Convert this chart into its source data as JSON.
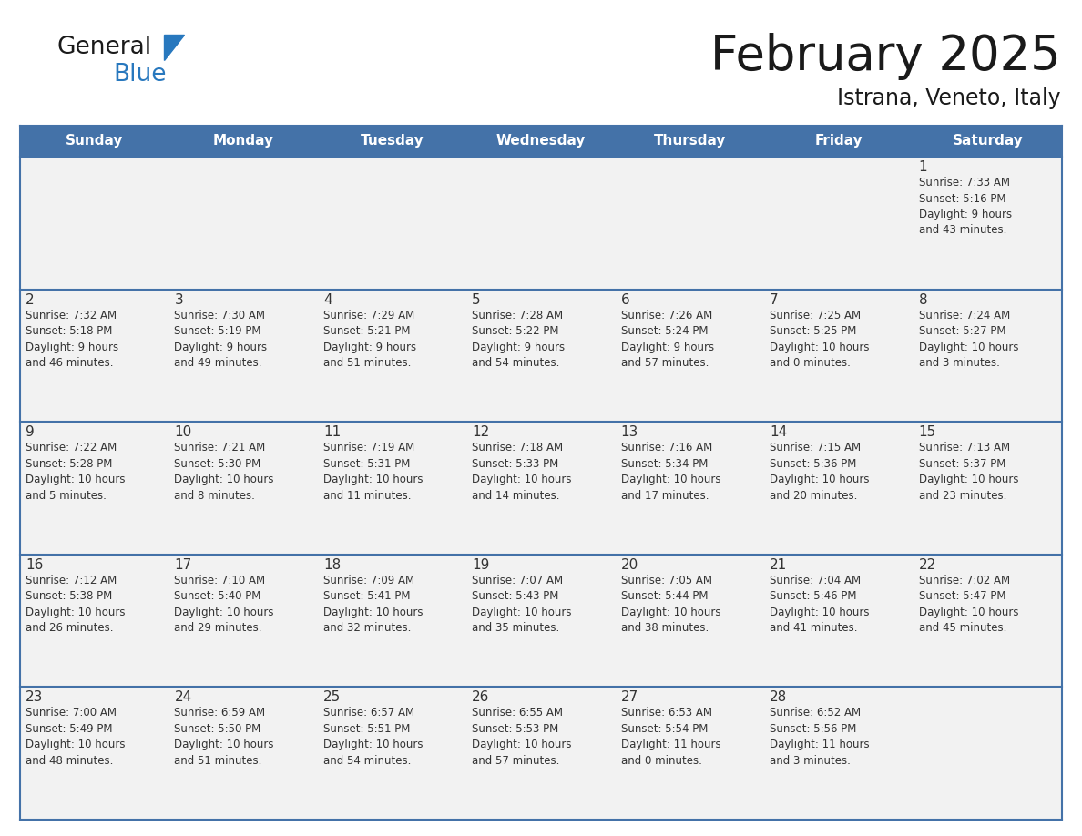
{
  "title": "February 2025",
  "subtitle": "Istrana, Veneto, Italy",
  "days_of_week": [
    "Sunday",
    "Monday",
    "Tuesday",
    "Wednesday",
    "Thursday",
    "Friday",
    "Saturday"
  ],
  "header_bg": "#4472A8",
  "header_text": "#FFFFFF",
  "cell_bg": "#F2F2F2",
  "border_color": "#4472A8",
  "separator_color": "#4472A8",
  "text_color": "#333333",
  "calendar_data": [
    [
      null,
      null,
      null,
      null,
      null,
      null,
      {
        "day": "1",
        "sunrise": "Sunrise: 7:33 AM",
        "sunset": "Sunset: 5:16 PM",
        "daylight": "Daylight: 9 hours\nand 43 minutes."
      }
    ],
    [
      {
        "day": "2",
        "sunrise": "Sunrise: 7:32 AM",
        "sunset": "Sunset: 5:18 PM",
        "daylight": "Daylight: 9 hours\nand 46 minutes."
      },
      {
        "day": "3",
        "sunrise": "Sunrise: 7:30 AM",
        "sunset": "Sunset: 5:19 PM",
        "daylight": "Daylight: 9 hours\nand 49 minutes."
      },
      {
        "day": "4",
        "sunrise": "Sunrise: 7:29 AM",
        "sunset": "Sunset: 5:21 PM",
        "daylight": "Daylight: 9 hours\nand 51 minutes."
      },
      {
        "day": "5",
        "sunrise": "Sunrise: 7:28 AM",
        "sunset": "Sunset: 5:22 PM",
        "daylight": "Daylight: 9 hours\nand 54 minutes."
      },
      {
        "day": "6",
        "sunrise": "Sunrise: 7:26 AM",
        "sunset": "Sunset: 5:24 PM",
        "daylight": "Daylight: 9 hours\nand 57 minutes."
      },
      {
        "day": "7",
        "sunrise": "Sunrise: 7:25 AM",
        "sunset": "Sunset: 5:25 PM",
        "daylight": "Daylight: 10 hours\nand 0 minutes."
      },
      {
        "day": "8",
        "sunrise": "Sunrise: 7:24 AM",
        "sunset": "Sunset: 5:27 PM",
        "daylight": "Daylight: 10 hours\nand 3 minutes."
      }
    ],
    [
      {
        "day": "9",
        "sunrise": "Sunrise: 7:22 AM",
        "sunset": "Sunset: 5:28 PM",
        "daylight": "Daylight: 10 hours\nand 5 minutes."
      },
      {
        "day": "10",
        "sunrise": "Sunrise: 7:21 AM",
        "sunset": "Sunset: 5:30 PM",
        "daylight": "Daylight: 10 hours\nand 8 minutes."
      },
      {
        "day": "11",
        "sunrise": "Sunrise: 7:19 AM",
        "sunset": "Sunset: 5:31 PM",
        "daylight": "Daylight: 10 hours\nand 11 minutes."
      },
      {
        "day": "12",
        "sunrise": "Sunrise: 7:18 AM",
        "sunset": "Sunset: 5:33 PM",
        "daylight": "Daylight: 10 hours\nand 14 minutes."
      },
      {
        "day": "13",
        "sunrise": "Sunrise: 7:16 AM",
        "sunset": "Sunset: 5:34 PM",
        "daylight": "Daylight: 10 hours\nand 17 minutes."
      },
      {
        "day": "14",
        "sunrise": "Sunrise: 7:15 AM",
        "sunset": "Sunset: 5:36 PM",
        "daylight": "Daylight: 10 hours\nand 20 minutes."
      },
      {
        "day": "15",
        "sunrise": "Sunrise: 7:13 AM",
        "sunset": "Sunset: 5:37 PM",
        "daylight": "Daylight: 10 hours\nand 23 minutes."
      }
    ],
    [
      {
        "day": "16",
        "sunrise": "Sunrise: 7:12 AM",
        "sunset": "Sunset: 5:38 PM",
        "daylight": "Daylight: 10 hours\nand 26 minutes."
      },
      {
        "day": "17",
        "sunrise": "Sunrise: 7:10 AM",
        "sunset": "Sunset: 5:40 PM",
        "daylight": "Daylight: 10 hours\nand 29 minutes."
      },
      {
        "day": "18",
        "sunrise": "Sunrise: 7:09 AM",
        "sunset": "Sunset: 5:41 PM",
        "daylight": "Daylight: 10 hours\nand 32 minutes."
      },
      {
        "day": "19",
        "sunrise": "Sunrise: 7:07 AM",
        "sunset": "Sunset: 5:43 PM",
        "daylight": "Daylight: 10 hours\nand 35 minutes."
      },
      {
        "day": "20",
        "sunrise": "Sunrise: 7:05 AM",
        "sunset": "Sunset: 5:44 PM",
        "daylight": "Daylight: 10 hours\nand 38 minutes."
      },
      {
        "day": "21",
        "sunrise": "Sunrise: 7:04 AM",
        "sunset": "Sunset: 5:46 PM",
        "daylight": "Daylight: 10 hours\nand 41 minutes."
      },
      {
        "day": "22",
        "sunrise": "Sunrise: 7:02 AM",
        "sunset": "Sunset: 5:47 PM",
        "daylight": "Daylight: 10 hours\nand 45 minutes."
      }
    ],
    [
      {
        "day": "23",
        "sunrise": "Sunrise: 7:00 AM",
        "sunset": "Sunset: 5:49 PM",
        "daylight": "Daylight: 10 hours\nand 48 minutes."
      },
      {
        "day": "24",
        "sunrise": "Sunrise: 6:59 AM",
        "sunset": "Sunset: 5:50 PM",
        "daylight": "Daylight: 10 hours\nand 51 minutes."
      },
      {
        "day": "25",
        "sunrise": "Sunrise: 6:57 AM",
        "sunset": "Sunset: 5:51 PM",
        "daylight": "Daylight: 10 hours\nand 54 minutes."
      },
      {
        "day": "26",
        "sunrise": "Sunrise: 6:55 AM",
        "sunset": "Sunset: 5:53 PM",
        "daylight": "Daylight: 10 hours\nand 57 minutes."
      },
      {
        "day": "27",
        "sunrise": "Sunrise: 6:53 AM",
        "sunset": "Sunset: 5:54 PM",
        "daylight": "Daylight: 11 hours\nand 0 minutes."
      },
      {
        "day": "28",
        "sunrise": "Sunrise: 6:52 AM",
        "sunset": "Sunset: 5:56 PM",
        "daylight": "Daylight: 11 hours\nand 3 minutes."
      },
      null
    ]
  ]
}
